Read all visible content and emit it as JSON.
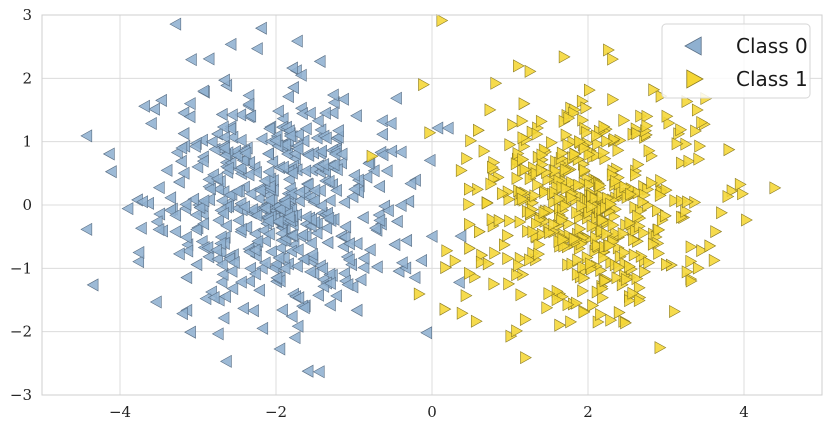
{
  "chart_data": {
    "type": "scatter",
    "title": "",
    "xlabel": "",
    "ylabel": "",
    "xlim": [
      -5.0,
      5.0
    ],
    "ylim": [
      -3,
      3
    ],
    "x_ticks": [
      -4,
      -2,
      0,
      2,
      4
    ],
    "y_ticks": [
      -3,
      -2,
      -1,
      0,
      1,
      2,
      3
    ],
    "x_tick_labels": [
      "−4",
      "−2",
      "0",
      "2",
      "4"
    ],
    "y_tick_labels": [
      "−3",
      "−2",
      "−1",
      "0",
      "1",
      "2",
      "3"
    ],
    "grid": true,
    "legend_position": "top-right",
    "series": [
      {
        "name": "Class 0",
        "marker": "triangle-left",
        "color": "#8fb0d0",
        "edge_color": "#5a6f85",
        "center": [
          -2.0,
          0.0
        ],
        "std": [
          0.8,
          0.9
        ],
        "count": 500
      },
      {
        "name": "Class 1",
        "marker": "triangle-right",
        "color": "#f5d634",
        "edge_color": "#8a7a20",
        "center": [
          2.0,
          0.0
        ],
        "std": [
          0.8,
          0.9
        ],
        "count": 500
      }
    ]
  }
}
